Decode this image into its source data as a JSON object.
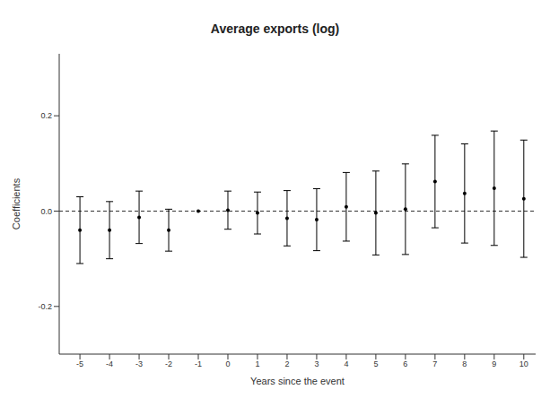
{
  "chart_data": {
    "type": "scatter",
    "title": "Average exports (log)",
    "x_label": "Years since the event",
    "y_label": "Coefficients",
    "x": [
      -5,
      -4,
      -3,
      -2,
      -1,
      0,
      1,
      2,
      3,
      4,
      5,
      6,
      7,
      8,
      9,
      10
    ],
    "values": [
      -0.04,
      -0.04,
      -0.013,
      -0.04,
      0,
      0.002,
      -0.004,
      -0.015,
      -0.018,
      0.009,
      -0.004,
      0.004,
      0.062,
      0.037,
      0.048,
      0.026
    ],
    "errors": [
      0.07,
      0.06,
      0.055,
      0.044,
      0,
      0.04,
      0.044,
      0.058,
      0.065,
      0.072,
      0.088,
      0.095,
      0.097,
      0.104,
      0.12,
      0.123
    ],
    "ref_line": 0,
    "color": "#000000",
    "marker": "circle",
    "line_style": "dashed",
    "xlim": [
      -5.7,
      10.4
    ],
    "ylim": [
      -0.3,
      0.33
    ],
    "xticks": [
      -5,
      -4,
      -3,
      -2,
      -1,
      0,
      1,
      2,
      3,
      4,
      5,
      6,
      7,
      8,
      9,
      10
    ],
    "yticks": [
      -0.2,
      {
        "value": 0,
        "label": "0.0"
      },
      0.2
    ],
    "grid": false
  }
}
